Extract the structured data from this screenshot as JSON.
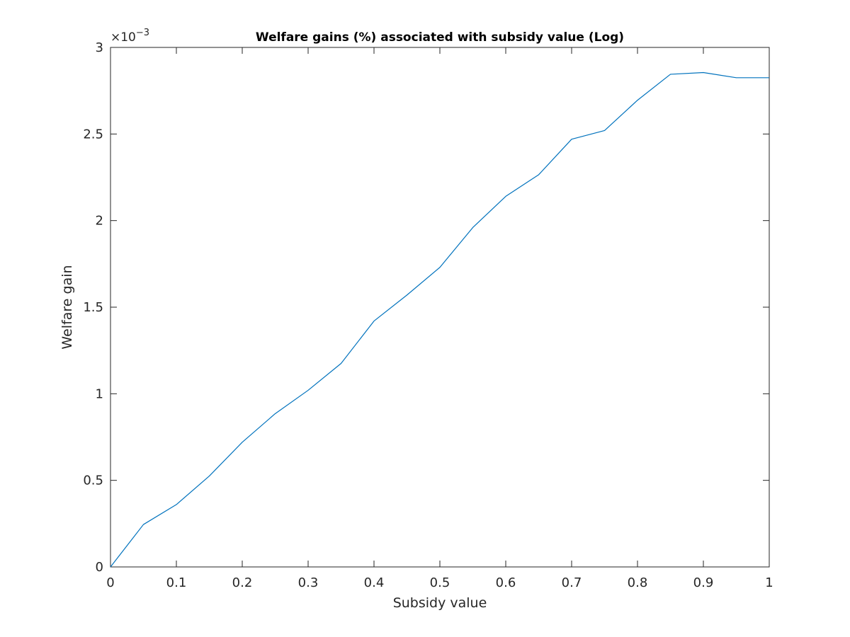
{
  "chart_data": {
    "type": "line",
    "title": "Welfare gains (%) associated with subsidy value (Log)",
    "xlabel": "Subsidy value",
    "ylabel": "Welfare gain",
    "y_exponent_base": "×10",
    "y_exponent_power": "−3",
    "xlim": [
      0,
      1
    ],
    "ylim": [
      0,
      3
    ],
    "x_ticks": [
      "0",
      "0.1",
      "0.2",
      "0.3",
      "0.4",
      "0.5",
      "0.6",
      "0.7",
      "0.8",
      "0.9",
      "1"
    ],
    "x_tick_values": [
      0,
      0.1,
      0.2,
      0.3,
      0.4,
      0.5,
      0.6,
      0.7,
      0.8,
      0.9,
      1.0
    ],
    "y_ticks": [
      "0",
      "0.5",
      "1",
      "1.5",
      "2",
      "2.5",
      "3"
    ],
    "y_tick_values": [
      0,
      0.5,
      1,
      1.5,
      2,
      2.5,
      3
    ],
    "grid": false,
    "series": [
      {
        "color": "#0072bd",
        "x": [
          0,
          0.05,
          0.1,
          0.15,
          0.2,
          0.25,
          0.3,
          0.35,
          0.4,
          0.45,
          0.5,
          0.55,
          0.6,
          0.65,
          0.7,
          0.75,
          0.8,
          0.85,
          0.9,
          0.95,
          1.0
        ],
        "values": [
          0,
          0.245,
          0.36,
          0.525,
          0.72,
          0.885,
          1.02,
          1.175,
          1.42,
          1.57,
          1.73,
          1.96,
          2.14,
          2.265,
          2.47,
          2.52,
          2.695,
          2.845,
          2.855,
          2.825,
          2.825
        ]
      }
    ]
  }
}
